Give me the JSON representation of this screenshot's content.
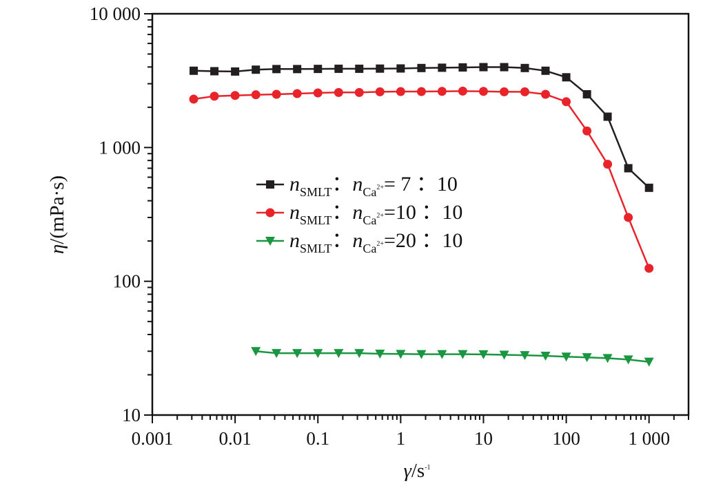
{
  "chart_data": {
    "type": "line",
    "x_scale": "log",
    "y_scale": "log",
    "xlim": [
      0.001,
      3000
    ],
    "ylim": [
      10,
      10000
    ],
    "x_ticks": [
      {
        "value": 0.001,
        "label": "0.001"
      },
      {
        "value": 0.01,
        "label": "0.01"
      },
      {
        "value": 0.1,
        "label": "0.1"
      },
      {
        "value": 1,
        "label": "1"
      },
      {
        "value": 10,
        "label": "10"
      },
      {
        "value": 100,
        "label": "100"
      },
      {
        "value": 1000,
        "label": "1 000"
      }
    ],
    "y_ticks": [
      {
        "value": 10,
        "label": "10"
      },
      {
        "value": 100,
        "label": "100"
      },
      {
        "value": 1000,
        "label": "1 000"
      },
      {
        "value": 10000,
        "label": "10 000"
      }
    ],
    "xlabel": {
      "symbol": "γ",
      "unit": "/s",
      "exp": "-1"
    },
    "ylabel": {
      "symbol": "η",
      "unit": "/(mPa·s)"
    },
    "grid": false,
    "legend_position": "center",
    "series": [
      {
        "name": "nSMLT : nCa2+= 7 : 10",
        "label": {
          "n1": "n",
          "sub1": "SMLT",
          "colon": "：",
          "n2": "n",
          "sub2": "Ca",
          "sup2": "2+",
          "ratio": "= 7 ：10"
        },
        "color": "#231f20",
        "marker": "square",
        "x": [
          0.00316,
          0.00562,
          0.01,
          0.0178,
          0.0316,
          0.0562,
          0.1,
          0.178,
          0.316,
          0.562,
          1,
          1.78,
          3.16,
          5.62,
          10,
          17.8,
          31.6,
          56.2,
          100,
          178,
          316,
          562,
          1000
        ],
        "y": [
          3750,
          3720,
          3700,
          3820,
          3860,
          3860,
          3870,
          3880,
          3880,
          3890,
          3900,
          3930,
          3950,
          3970,
          3990,
          3990,
          3930,
          3750,
          3350,
          2500,
          1700,
          700,
          500
        ]
      },
      {
        "name": "nSMLT : nCa2+=10 : 10",
        "label": {
          "n1": "n",
          "sub1": "SMLT",
          "colon": "：",
          "n2": "n",
          "sub2": "Ca",
          "sup2": "2+",
          "ratio": "=10 ：10"
        },
        "color": "#e8242a",
        "marker": "circle",
        "x": [
          0.00316,
          0.00562,
          0.01,
          0.0178,
          0.0316,
          0.0562,
          0.1,
          0.178,
          0.316,
          0.562,
          1,
          1.78,
          3.16,
          5.62,
          10,
          17.8,
          31.6,
          56.2,
          100,
          178,
          316,
          562,
          1000
        ],
        "y": [
          2300,
          2420,
          2450,
          2480,
          2500,
          2530,
          2560,
          2580,
          2580,
          2610,
          2620,
          2620,
          2630,
          2640,
          2630,
          2610,
          2610,
          2500,
          2200,
          1330,
          750,
          300,
          125
        ]
      },
      {
        "name": "nSMLT : nCa2+=20 : 10",
        "label": {
          "n1": "n",
          "sub1": "SMLT",
          "colon": "：",
          "n2": "n",
          "sub2": "Ca",
          "sup2": "2+",
          "ratio": "=20 ：10"
        },
        "color": "#1a9641",
        "marker": "triangle-down",
        "x": [
          0.0178,
          0.0316,
          0.0562,
          0.1,
          0.178,
          0.316,
          0.562,
          1,
          1.78,
          3.16,
          5.62,
          10,
          17.8,
          31.6,
          56.2,
          100,
          178,
          316,
          562,
          1000
        ],
        "y": [
          30,
          29,
          29,
          29,
          29,
          29,
          28.7,
          28.6,
          28.5,
          28.5,
          28.5,
          28.4,
          28.2,
          28,
          27.7,
          27.3,
          27,
          26.6,
          26,
          25
        ]
      }
    ]
  }
}
